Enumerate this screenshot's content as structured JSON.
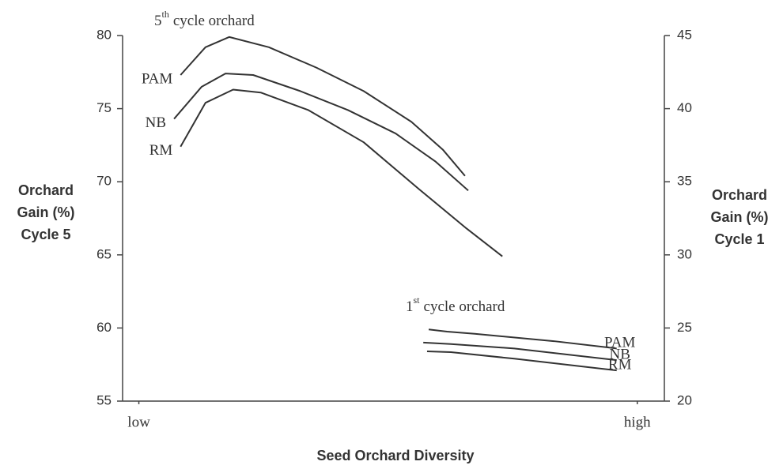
{
  "chart_data": {
    "type": "line",
    "xlabel": "Seed Orchard Diversity",
    "ylabel": [
      "Orchard",
      "Gain (%)",
      "Cycle 5"
    ],
    "y2label": [
      "Orchard",
      "Gain (%)",
      "Cycle 1"
    ],
    "annotations": [
      {
        "number": "5",
        "superscript": "th",
        "text": "cycle orchard"
      },
      {
        "number": "1",
        "superscript": "st",
        "text": "cycle orchard"
      }
    ],
    "xlim": [
      0,
      100
    ],
    "xticks": [
      {
        "value": 3,
        "label": "low"
      },
      {
        "value": 95,
        "label": "high"
      }
    ],
    "ylim": [
      55,
      80
    ],
    "yticks": [
      55,
      60,
      65,
      70,
      75,
      80
    ],
    "y2lim": [
      20,
      45
    ],
    "y2ticks": [
      20,
      25,
      30,
      35,
      40,
      45
    ],
    "grid": false,
    "series": [
      {
        "name": "PAM",
        "color": "#333333",
        "x": [
          10.7,
          15.3,
          19.7,
          27,
          35.8,
          44.5,
          53.3,
          59.1,
          63.2
        ],
        "values": [
          77.3,
          79.2,
          79.9,
          79.2,
          77.8,
          76.2,
          74.1,
          72.2,
          70.4
        ]
      },
      {
        "name": "NB",
        "color": "#333333",
        "x": [
          9.5,
          14.6,
          19,
          24.1,
          32.8,
          41.6,
          50.4,
          57.7,
          63.8
        ],
        "values": [
          74.3,
          76.5,
          77.4,
          77.3,
          76.2,
          74.9,
          73.3,
          71.4,
          69.4
        ]
      },
      {
        "name": "RM",
        "color": "#333333",
        "x": [
          10.7,
          15.3,
          20.4,
          25.5,
          34.3,
          44.5,
          54.7,
          63.5,
          70.1
        ],
        "values": [
          72.4,
          75.4,
          76.3,
          76.1,
          74.9,
          72.7,
          69.5,
          66.8,
          64.9
        ]
      },
      {
        "name": "PAM",
        "color": "#333333",
        "axis": "y2",
        "x": [
          56.5,
          59.9,
          65,
          79.6,
          91.2
        ],
        "values": [
          24.9,
          24.75,
          24.6,
          24.1,
          23.6
        ]
      },
      {
        "name": "NB",
        "color": "#333333",
        "axis": "y2",
        "x": [
          55.5,
          60.6,
          72.3,
          91.2
        ],
        "values": [
          24.0,
          23.9,
          23.6,
          22.8
        ]
      },
      {
        "name": "RM",
        "color": "#333333",
        "axis": "y2",
        "x": [
          56.2,
          60.6,
          72.3,
          91.2
        ],
        "values": [
          23.4,
          23.35,
          22.9,
          22.1
        ]
      }
    ]
  }
}
